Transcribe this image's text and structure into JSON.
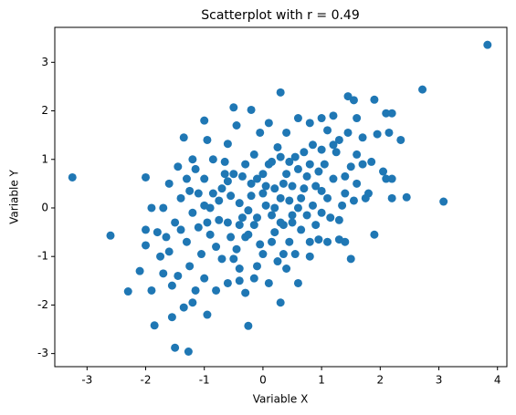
{
  "chart_data": {
    "type": "scatter",
    "title": "Scatterplot with r = 0.49",
    "x_label": "Variable X",
    "y_label": "Variable Y",
    "color": "#1f77b4",
    "xlim": [
      -3.55,
      4.16
    ],
    "ylim": [
      -3.27,
      3.72
    ],
    "xticks": [
      -3,
      -2,
      -1,
      0,
      1,
      2,
      3,
      4
    ],
    "yticks": [
      -3,
      -2,
      -1,
      0,
      1,
      2,
      3
    ],
    "x": [
      3.83,
      2.72,
      3.08,
      -3.25,
      -2.6,
      -1.27,
      -1.5,
      -1.85,
      -0.25,
      -2.3,
      2.45,
      2.35,
      1.9,
      1.45,
      1.55,
      2.1,
      2.2,
      2.15,
      1.95,
      2.05,
      2.1,
      2.2,
      2.2,
      1.9,
      1.5,
      1.4,
      1.3,
      -2.0,
      -2.0,
      -2.0,
      -2.1,
      -1.9,
      -1.75,
      -1.7,
      -1.55,
      -1.55,
      -1.35,
      -1.2,
      -1.15,
      -1.0,
      -0.95,
      -0.8,
      -0.6,
      -0.4,
      -0.3,
      -0.1,
      0.1,
      0.3,
      0.4,
      0.6,
      0.8,
      0.35,
      -1.35,
      -1.2,
      -1.3,
      -1.0,
      -0.95,
      -0.6,
      -0.5,
      -0.2,
      0.3,
      0.6,
      0.8,
      1.0,
      1.1,
      1.2,
      1.3,
      1.6,
      1.7,
      1.7,
      1.8,
      1.6,
      1.5,
      1.4,
      1.2,
      1.1,
      1.0,
      0.9,
      0.8,
      0.7,
      0.6,
      0.5,
      0.4,
      0.3,
      0.2,
      0.1,
      0.0,
      -0.1,
      -0.2,
      -0.3,
      -0.4,
      -0.5,
      -0.6,
      -0.7,
      -0.8,
      -0.9,
      -1.0,
      -1.1,
      -1.2,
      -1.3,
      -1.4,
      -1.5,
      -1.6,
      -1.7,
      -1.8,
      -1.9,
      -1.45,
      -1.1,
      -0.85,
      -0.75,
      -0.65,
      -0.45,
      -0.35,
      -0.25,
      -0.15,
      -0.05,
      0.05,
      0.15,
      0.25,
      0.35,
      0.45,
      0.55,
      0.65,
      0.75,
      0.85,
      0.95,
      1.05,
      1.15,
      1.25,
      1.35,
      1.45,
      0.9,
      0.5,
      0.2,
      -0.2,
      -0.55,
      -0.85,
      -1.05,
      -1.25,
      -0.7,
      -0.4,
      -0.1,
      0.15,
      0.45,
      0.7,
      1.0,
      1.3,
      1.55,
      1.75,
      0.6,
      0.3,
      -0.3,
      -0.6,
      -0.9,
      -1.15,
      -1.4,
      -1.65,
      0.0,
      0.25,
      -0.15,
      0.55,
      -0.5,
      -0.25,
      0.05,
      0.35,
      0.65,
      0.95,
      1.2,
      1.6,
      1.85,
      -0.05,
      0.4,
      0.1,
      -0.45,
      0.75,
      1.1,
      -0.75,
      -1.0,
      -0.35,
      0.2,
      0.5,
      0.85,
      -0.15,
      -0.55,
      -0.95,
      0.0,
      0.3,
      1.0,
      1.4,
      -1.6,
      -1.25,
      0.15,
      0.45,
      -0.65,
      -0.4,
      -1.45,
      0.8
    ],
    "values": [
      3.36,
      2.44,
      0.13,
      0.63,
      -0.57,
      -2.96,
      -2.88,
      -2.42,
      -2.43,
      -1.72,
      0.22,
      1.4,
      2.23,
      2.3,
      2.22,
      1.95,
      1.95,
      1.55,
      1.52,
      0.75,
      0.6,
      0.6,
      0.2,
      -0.55,
      -1.05,
      -0.7,
      -0.65,
      0.63,
      -0.77,
      -0.45,
      -1.3,
      -1.7,
      -1.0,
      -1.35,
      -1.6,
      -2.25,
      -2.05,
      -1.95,
      -1.7,
      -1.45,
      -2.2,
      -1.7,
      -1.55,
      -1.5,
      -1.75,
      -1.2,
      -1.55,
      -1.95,
      -1.25,
      -1.55,
      -1.0,
      -0.95,
      1.45,
      1.0,
      0.6,
      1.8,
      1.4,
      1.32,
      2.07,
      2.02,
      2.38,
      1.85,
      1.75,
      1.85,
      1.6,
      1.9,
      1.4,
      1.1,
      1.45,
      0.9,
      0.3,
      0.5,
      0.85,
      0.3,
      0.6,
      0.2,
      -0.1,
      0.45,
      0.9,
      0.4,
      0.0,
      -0.3,
      0.7,
      0.2,
      -0.5,
      0.9,
      0.3,
      -0.2,
      0.5,
      -0.6,
      0.1,
      0.7,
      -0.3,
      0.4,
      -0.8,
      0.0,
      0.6,
      -0.4,
      -0.1,
      -0.7,
      0.2,
      -0.3,
      -0.9,
      0.0,
      -0.5,
      0.0,
      0.85,
      0.3,
      1.0,
      -0.25,
      0.95,
      -0.85,
      0.65,
      -0.05,
      1.1,
      -0.75,
      0.45,
      -0.15,
      1.25,
      -0.35,
      0.15,
      1.05,
      -0.45,
      0.65,
      1.3,
      -0.65,
      0.9,
      -0.2,
      1.15,
      0.05,
      1.55,
      -0.35,
      0.45,
      0.0,
      0.25,
      0.25,
      0.3,
      -0.95,
      -1.2,
      -1.05,
      -0.35,
      0.6,
      0.95,
      -0.7,
      1.15,
      0.35,
      -0.25,
      0.15,
      0.2,
      0.8,
      -0.3,
      0.9,
      0.55,
      -0.55,
      0.8,
      -0.45,
      -0.6,
      -0.95,
      -1.1,
      -1.45,
      -0.95,
      -1.05,
      -0.55,
      0.05,
      0.5,
      0.2,
      0.75,
      1.3,
      1.85,
      0.95,
      1.55,
      1.55,
      1.75,
      1.7,
      -0.15,
      -0.7,
      0.15,
      0.05,
      -0.2,
      0.4,
      -0.15,
      0.05,
      -0.35,
      -0.6,
      -0.3,
      0.7,
      1.05,
      1.2,
      0.65,
      0.5,
      0.35,
      -0.7,
      0.95,
      0.7,
      -1.25,
      -1.4,
      -0.7
    ]
  }
}
